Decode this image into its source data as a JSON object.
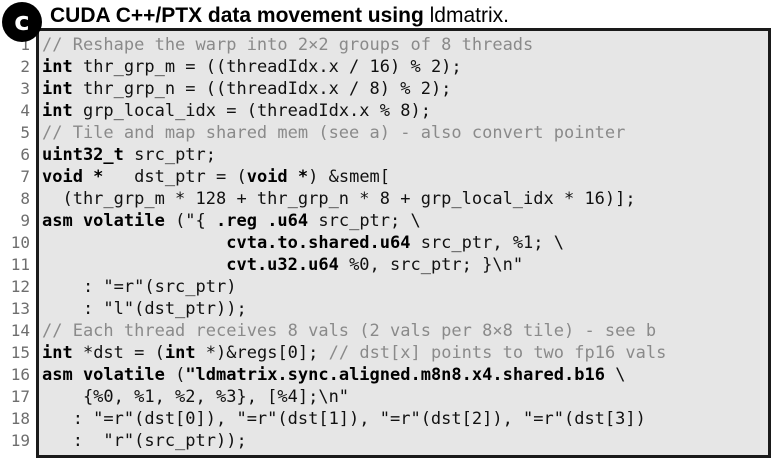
{
  "panel": {
    "badge": "c",
    "title_bold": "CUDA C++/PTX data movement using",
    "title_regular": " ldmatrix."
  },
  "code": {
    "lines": [
      {
        "n": "1",
        "tokens": [
          {
            "t": "// Reshape the warp into 2×2 groups of 8 threads",
            "k": "comment"
          }
        ]
      },
      {
        "n": "2",
        "tokens": [
          {
            "t": "int",
            "k": "kw"
          },
          {
            "t": " thr_grp_m = ((threadIdx.x / 16) % 2);",
            "k": "text"
          }
        ]
      },
      {
        "n": "3",
        "tokens": [
          {
            "t": "int",
            "k": "kw"
          },
          {
            "t": " thr_grp_n = ((threadIdx.x / 8) % 2);",
            "k": "text"
          }
        ]
      },
      {
        "n": "4",
        "tokens": [
          {
            "t": "int",
            "k": "kw"
          },
          {
            "t": " grp_local_idx = (threadIdx.x % 8);",
            "k": "text"
          }
        ]
      },
      {
        "n": "5",
        "tokens": [
          {
            "t": "// Tile and map shared mem (see a) - also convert pointer",
            "k": "comment"
          }
        ]
      },
      {
        "n": "6",
        "tokens": [
          {
            "t": "uint32_t",
            "k": "kw"
          },
          {
            "t": " src_ptr;",
            "k": "text"
          }
        ]
      },
      {
        "n": "7",
        "tokens": [
          {
            "t": "void *",
            "k": "kw"
          },
          {
            "t": "   dst_ptr = (",
            "k": "text"
          },
          {
            "t": "void *",
            "k": "kw"
          },
          {
            "t": ") &smem[",
            "k": "text"
          }
        ]
      },
      {
        "n": "8",
        "tokens": [
          {
            "t": "  (thr_grp_m * 128 + thr_grp_n * 8 + grp_local_idx * 16)];",
            "k": "text"
          }
        ]
      },
      {
        "n": "9",
        "tokens": [
          {
            "t": "asm volatile",
            "k": "kw"
          },
          {
            "t": " (\"{ ",
            "k": "text"
          },
          {
            "t": ".reg .u64",
            "k": "kw"
          },
          {
            "t": " src_ptr; \\",
            "k": "text"
          }
        ]
      },
      {
        "n": "10",
        "tokens": [
          {
            "t": "                  ",
            "k": "text"
          },
          {
            "t": "cvta.to.shared.u64",
            "k": "kw"
          },
          {
            "t": " src_ptr, %1; \\",
            "k": "text"
          }
        ]
      },
      {
        "n": "11",
        "tokens": [
          {
            "t": "                  ",
            "k": "text"
          },
          {
            "t": "cvt.u32.u64",
            "k": "kw"
          },
          {
            "t": " %0, src_ptr; }\\n\"",
            "k": "text"
          }
        ]
      },
      {
        "n": "12",
        "tokens": [
          {
            "t": "    : \"=r\"(src_ptr)",
            "k": "text"
          }
        ]
      },
      {
        "n": "13",
        "tokens": [
          {
            "t": "    : \"l\"(dst_ptr));",
            "k": "text"
          }
        ]
      },
      {
        "n": "14",
        "tokens": [
          {
            "t": "// Each thread receives 8 vals (2 vals per 8×8 tile) - see b",
            "k": "comment"
          }
        ]
      },
      {
        "n": "15",
        "tokens": [
          {
            "t": "int",
            "k": "kw"
          },
          {
            "t": " *dst = (",
            "k": "text"
          },
          {
            "t": "int",
            "k": "kw"
          },
          {
            "t": " *)&regs[0]; ",
            "k": "text"
          },
          {
            "t": "// dst[x] points to two fp16 vals",
            "k": "comment"
          }
        ]
      },
      {
        "n": "16",
        "tokens": [
          {
            "t": "asm volatile",
            "k": "kw"
          },
          {
            "t": " (",
            "k": "text"
          },
          {
            "t": "\"ldmatrix.sync.aligned.m8n8.x4.shared.b16",
            "k": "kw"
          },
          {
            "t": " \\",
            "k": "text"
          }
        ]
      },
      {
        "n": "17",
        "tokens": [
          {
            "t": "    {%0, %1, %2, %3}, [%4];\\n\"",
            "k": "text"
          }
        ]
      },
      {
        "n": "18",
        "tokens": [
          {
            "t": "   : \"=r\"(dst[0]), \"=r\"(dst[1]), \"=r\"(dst[2]), \"=r\"(dst[3])",
            "k": "text"
          }
        ]
      },
      {
        "n": "19",
        "tokens": [
          {
            "t": "   :  \"r\"(src_ptr));",
            "k": "text"
          }
        ]
      }
    ]
  }
}
